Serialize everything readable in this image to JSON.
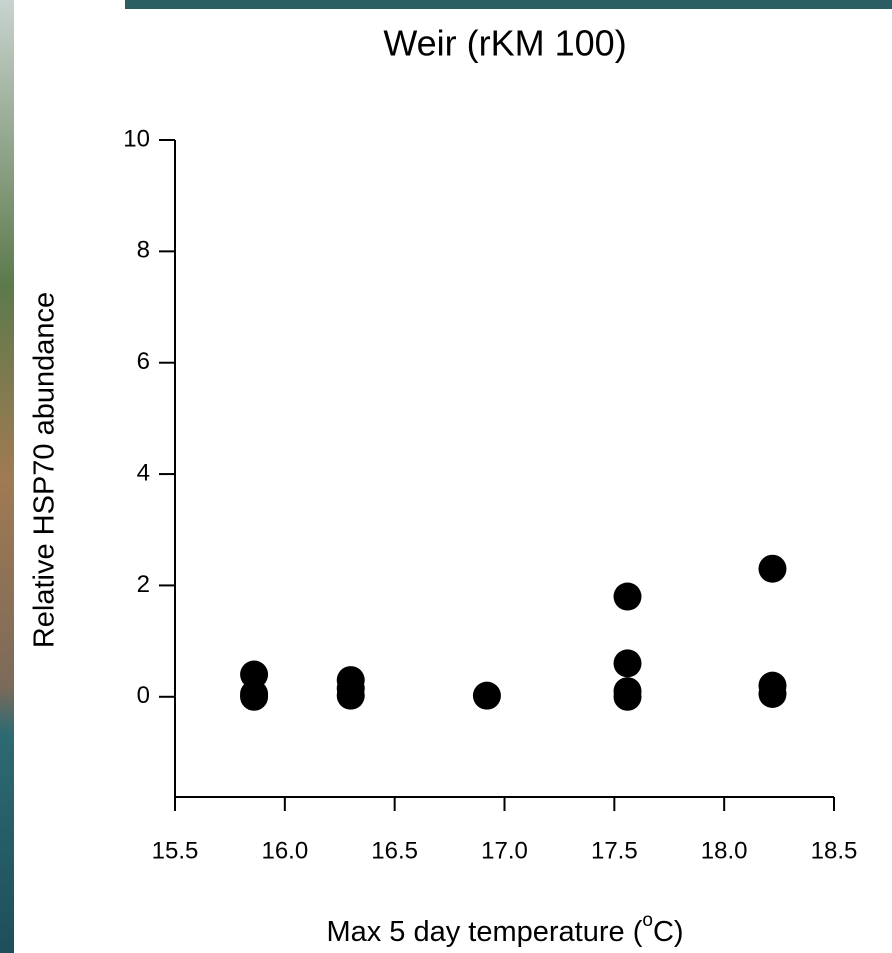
{
  "chart_data": {
    "type": "scatter",
    "title": "Weir (rKM 100)",
    "x_label": {
      "text": "Max 5 day temperature (",
      "superscript": "o",
      "suffix": "C)"
    },
    "y_label": "Relative HSP70 abundance",
    "x": [
      15.86,
      15.86,
      15.86,
      16.3,
      16.3,
      16.3,
      16.92,
      17.56,
      17.56,
      17.56,
      17.56,
      18.22,
      18.22,
      18.22
    ],
    "values": [
      0.4,
      0.05,
      0.0,
      0.3,
      0.15,
      0.02,
      0.02,
      1.8,
      0.6,
      0.1,
      0.0,
      2.3,
      0.2,
      0.05
    ],
    "color": "#000000",
    "xlim": [
      15.5,
      18.5
    ],
    "xticks": [
      15.5,
      {
        "value": 16,
        "label": "16.0"
      },
      16.5,
      {
        "value": 17,
        "label": "17.0"
      },
      17.5,
      {
        "value": 18,
        "label": "18.0"
      },
      18.5
    ],
    "ylim": [
      -1.8,
      10
    ],
    "yticks": [
      0,
      2,
      4,
      6,
      8,
      10
    ]
  }
}
